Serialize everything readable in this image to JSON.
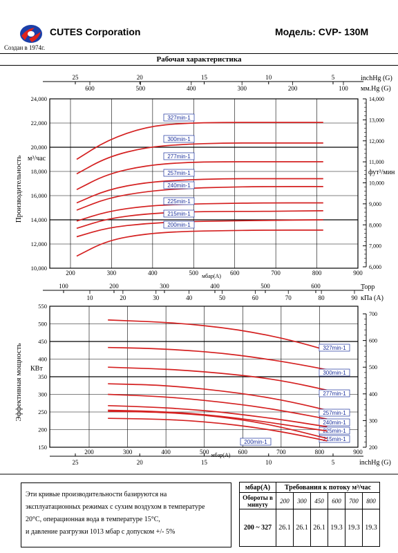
{
  "header": {
    "company": "CUTES Corporation",
    "model": "Модель: CVP- 130M",
    "founded": "Создан в 1974г.",
    "section_title": "Рабочая характеристика"
  },
  "chart_data": [
    {
      "type": "line",
      "name": "flow",
      "xlim": [
        100,
        900
      ],
      "ylim": [
        10000,
        24000
      ],
      "y_ticks": [
        "10,000",
        "12,000",
        "14,000",
        "16,000",
        "18,000",
        "20,000",
        "22,000",
        "24,000"
      ],
      "ylabel": "Производительность",
      "yunit": "м³/час",
      "right_ticks": [
        "6,000",
        "7,000",
        "8,000",
        "9,000",
        "10,000",
        "11,000",
        "12,000",
        "13,000",
        "14,000"
      ],
      "right_unit": "фут³/мин",
      "top_scale1_ticks": [
        "25",
        "20",
        "15",
        "10",
        "5"
      ],
      "top_scale1_unit": "inchHg (G)",
      "top_scale2_ticks": [
        "600",
        "500",
        "400",
        "300",
        "200",
        "100"
      ],
      "top_scale2_unit": "мм.Hg (G)",
      "x_ticks": [
        "200",
        "300",
        "400",
        "500",
        "600",
        "700",
        "800",
        "900"
      ],
      "xlabel": "мбар(A)",
      "grid": true,
      "series": [
        {
          "name": "327min-1",
          "x": [
            170,
            250,
            350,
            450,
            550,
            650,
            810
          ],
          "y": [
            19000,
            20600,
            21700,
            22000,
            22050,
            22050,
            22050
          ]
        },
        {
          "name": "300min-1",
          "x": [
            170,
            250,
            350,
            450,
            550,
            650,
            810
          ],
          "y": [
            17800,
            19200,
            20000,
            20250,
            20350,
            20350,
            20350
          ]
        },
        {
          "name": "277min-1",
          "x": [
            170,
            250,
            350,
            450,
            550,
            650,
            810
          ],
          "y": [
            16500,
            17800,
            18500,
            18750,
            18800,
            18800,
            18800
          ]
        },
        {
          "name": "257min-1",
          "x": [
            170,
            250,
            350,
            450,
            550,
            650,
            810
          ],
          "y": [
            15400,
            16500,
            17100,
            17300,
            17400,
            17400,
            17400
          ]
        },
        {
          "name": "240min-1",
          "x": [
            170,
            250,
            350,
            450,
            550,
            650,
            810
          ],
          "y": [
            14800,
            15800,
            16350,
            16600,
            16700,
            16750,
            16750
          ]
        },
        {
          "name": "225min-1",
          "x": [
            170,
            250,
            350,
            450,
            550,
            650,
            810
          ],
          "y": [
            13900,
            14700,
            15150,
            15300,
            15350,
            15400,
            15400
          ]
        },
        {
          "name": "215min-1",
          "x": [
            170,
            250,
            350,
            450,
            550,
            650,
            810
          ],
          "y": [
            13300,
            14100,
            14500,
            14650,
            14700,
            14700,
            14750
          ]
        },
        {
          "name": "200min-1",
          "x": [
            170,
            250,
            350,
            450,
            550,
            650,
            810
          ],
          "y": [
            12600,
            13350,
            13700,
            13850,
            13900,
            13950,
            14000
          ]
        },
        {
          "name": "",
          "x": [
            170,
            250,
            350,
            450,
            550,
            650,
            810
          ],
          "y": [
            11000,
            12300,
            12850,
            13050,
            13100,
            13150,
            13150
          ]
        }
      ]
    },
    {
      "type": "line",
      "name": "power",
      "xlim": [
        0,
        90
      ],
      "ylim": [
        150,
        550
      ],
      "y_ticks": [
        "150",
        "200",
        "250",
        "300",
        "350",
        "400",
        "450",
        "500",
        "550"
      ],
      "ylabel": "Эффективная мощность",
      "yunit": "КВт",
      "right_ticks": [
        "200",
        "300",
        "400",
        "500",
        "600",
        "700"
      ],
      "top_scale1_ticks": [
        "100",
        "200",
        "300",
        "400",
        "500",
        "600"
      ],
      "top_scale1_unit": "Торр",
      "top_scale2_ticks": [
        "10",
        "20",
        "30",
        "40",
        "50",
        "60",
        "70",
        "80",
        "90"
      ],
      "top_scale2_unit": "кПа (A)",
      "x_ticks": [
        "200",
        "300",
        "400",
        "500",
        "600",
        "700",
        "800",
        "900"
      ],
      "xlabel": "мбар(A)",
      "bottom_ticks": [
        "25",
        "20",
        "15",
        "10",
        "5"
      ],
      "bottom_unit": "inchHg (G)",
      "grid": true,
      "series": [
        {
          "name": "327min-1",
          "x": [
            17,
            30,
            40,
            50,
            60,
            70,
            81
          ],
          "y": [
            511,
            506,
            500,
            490,
            475,
            455,
            425
          ]
        },
        {
          "name": "300min-1",
          "x": [
            17,
            30,
            40,
            50,
            60,
            70,
            81
          ],
          "y": [
            433,
            430,
            425,
            417,
            405,
            390,
            370
          ]
        },
        {
          "name": "277min-1",
          "x": [
            17,
            30,
            40,
            50,
            60,
            70,
            81
          ],
          "y": [
            377,
            373,
            368,
            360,
            350,
            335,
            312
          ]
        },
        {
          "name": "257min-1",
          "x": [
            17,
            30,
            40,
            50,
            60,
            70,
            81
          ],
          "y": [
            330,
            327,
            320,
            310,
            297,
            280,
            255
          ]
        },
        {
          "name": "240min-1",
          "x": [
            17,
            30,
            40,
            50,
            60,
            70,
            81
          ],
          "y": [
            300,
            295,
            288,
            278,
            266,
            250,
            230
          ]
        },
        {
          "name": "225min-1",
          "x": [
            17,
            30,
            40,
            50,
            60,
            70,
            81
          ],
          "y": [
            268,
            264,
            258,
            250,
            238,
            225,
            208
          ]
        },
        {
          "name": "215min-1",
          "x": [
            17,
            30,
            40,
            50,
            60,
            70,
            81
          ],
          "y": [
            255,
            252,
            247,
            238,
            226,
            212,
            196
          ]
        },
        {
          "name": "200min-1",
          "x": [
            17,
            30,
            40,
            50,
            60,
            70,
            81
          ],
          "y": [
            232,
            230,
            226,
            218,
            206,
            190,
            168
          ]
        },
        {
          "name": "",
          "x": [
            17,
            30,
            40,
            50,
            60,
            70,
            81
          ],
          "y": [
            252,
            250,
            245,
            236,
            222,
            202,
            175
          ]
        }
      ]
    }
  ],
  "footer": {
    "note_lines": [
      "Эти кривые производительности базируются на",
      "эксплуатационных режимах с сухим воздухом в температуре",
      "20°С, операционная вода в температуре 15°С,",
      "и давление разгрузки 1013 мбар с допуском +/- 5%"
    ],
    "table": {
      "col0_header": "мбар(A)",
      "title": "Требования к потоку м³/час",
      "row_header": "Обороты в минуту",
      "pressures": [
        "200",
        "300",
        "450",
        "600",
        "700",
        "800"
      ],
      "rpm_range": "200 ~ 327",
      "values": [
        "26.1",
        "26.1",
        "26.1",
        "19.3",
        "19.3",
        "19.3"
      ]
    }
  }
}
